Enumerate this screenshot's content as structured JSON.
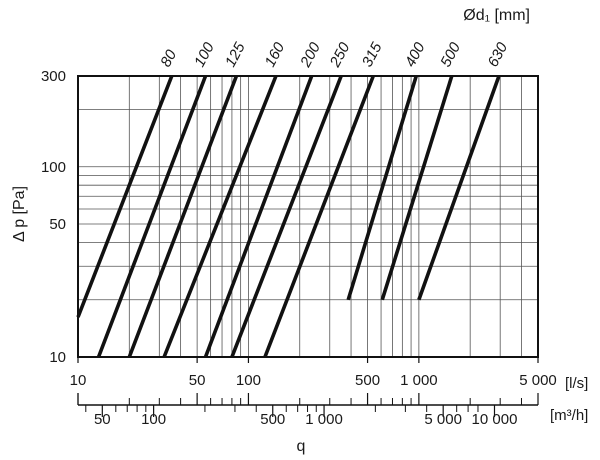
{
  "chart_data": {
    "type": "line",
    "x_scale": "log",
    "y_scale": "log",
    "xlim": [
      10,
      5000
    ],
    "ylim": [
      10,
      300
    ],
    "grid": true,
    "legend": "none",
    "ylabel": "Δ p [Pa]",
    "xlabel": "q",
    "series_title": "Ød₁ [mm]",
    "x_unit": "[l/s]",
    "x2_unit": "[m³/h]",
    "x_tick_labels": [
      {
        "value": 10,
        "label": "10"
      },
      {
        "value": 50,
        "label": "50"
      },
      {
        "value": 100,
        "label": "100"
      },
      {
        "value": 500,
        "label": "500"
      },
      {
        "value": 1000,
        "label": "1 000"
      },
      {
        "value": 5000,
        "label": "5 000"
      }
    ],
    "x2_tick_labels": [
      {
        "value": 50,
        "label": "50"
      },
      {
        "value": 100,
        "label": "100"
      },
      {
        "value": 500,
        "label": "500"
      },
      {
        "value": 1000,
        "label": "1 000"
      },
      {
        "value": 5000,
        "label": "5 000"
      },
      {
        "value": 10000,
        "label": "10 000"
      }
    ],
    "y_tick_labels": [
      {
        "value": 10,
        "label": "10"
      },
      {
        "value": 50,
        "label": "50"
      },
      {
        "value": 100,
        "label": "100"
      },
      {
        "value": 300,
        "label": "300"
      }
    ],
    "x_grid": [
      20,
      30,
      40,
      50,
      60,
      70,
      80,
      90,
      100,
      200,
      300,
      400,
      500,
      600,
      700,
      800,
      900,
      1000,
      2000,
      3000,
      4000
    ],
    "y_grid": [
      20,
      30,
      40,
      50,
      60,
      70,
      80,
      90,
      100,
      200
    ],
    "x_minor_ticks": [
      20,
      30,
      40,
      60,
      70,
      80,
      90,
      200,
      300,
      400,
      600,
      700,
      800,
      900,
      2000,
      3000,
      4000
    ],
    "x2_minor_ticks": [
      40,
      60,
      70,
      80,
      90,
      200,
      300,
      400,
      600,
      700,
      800,
      900,
      2000,
      3000,
      4000,
      6000,
      7000,
      8000
    ],
    "series": [
      {
        "name": "80",
        "points": [
          [
            10,
            16.2
          ],
          [
            35.5,
            300
          ]
        ]
      },
      {
        "name": "100",
        "points": [
          [
            13.2,
            10
          ],
          [
            56,
            300
          ]
        ]
      },
      {
        "name": "125",
        "points": [
          [
            20,
            10
          ],
          [
            85,
            300
          ]
        ]
      },
      {
        "name": "160",
        "points": [
          [
            32,
            10
          ],
          [
            145,
            300
          ]
        ]
      },
      {
        "name": "200",
        "points": [
          [
            56,
            10
          ],
          [
            235,
            300
          ]
        ]
      },
      {
        "name": "250",
        "points": [
          [
            80,
            10
          ],
          [
            350,
            300
          ]
        ]
      },
      {
        "name": "315",
        "points": [
          [
            125,
            10
          ],
          [
            540,
            300
          ]
        ]
      },
      {
        "name": "400",
        "points": [
          [
            385,
            20
          ],
          [
            965,
            300
          ]
        ]
      },
      {
        "name": "500",
        "points": [
          [
            610,
            20
          ],
          [
            1560,
            300
          ]
        ]
      },
      {
        "name": "630",
        "points": [
          [
            1000,
            20
          ],
          [
            2950,
            300
          ]
        ]
      }
    ]
  }
}
